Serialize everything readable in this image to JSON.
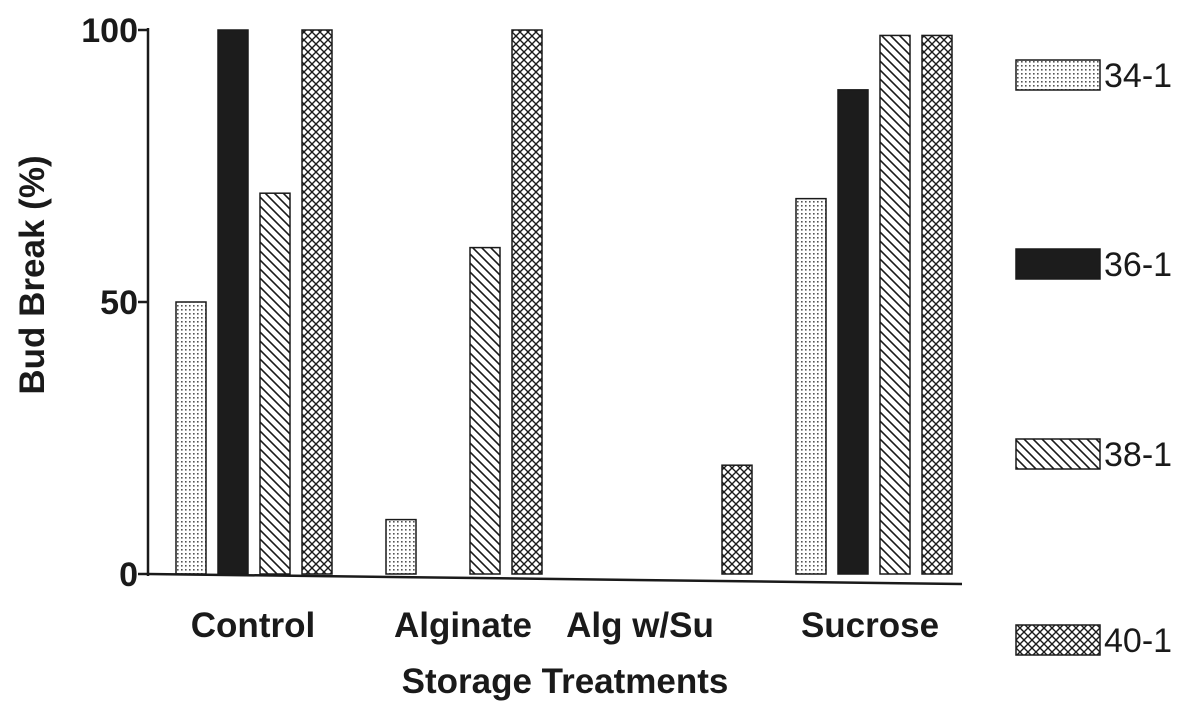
{
  "chart_data": {
    "type": "bar",
    "title": "",
    "xlabel": "Storage Treatments",
    "ylabel": "Bud Break (%)",
    "ylim": [
      0,
      100
    ],
    "yticks": [
      "0",
      "50",
      "100"
    ],
    "grid": false,
    "legend_position": "right",
    "categories": [
      "Control",
      "Alginate",
      "Alg w/Su",
      "Sucrose"
    ],
    "series": [
      {
        "name": "34-1",
        "pattern": "dots",
        "values": [
          50,
          10,
          0,
          69
        ]
      },
      {
        "name": "36-1",
        "pattern": "solid",
        "values": [
          100,
          0,
          0,
          89
        ]
      },
      {
        "name": "38-1",
        "pattern": "diagonal",
        "values": [
          70,
          60,
          0,
          99
        ]
      },
      {
        "name": "40-1",
        "pattern": "crosshatch",
        "values": [
          100,
          100,
          20,
          99
        ]
      }
    ]
  }
}
